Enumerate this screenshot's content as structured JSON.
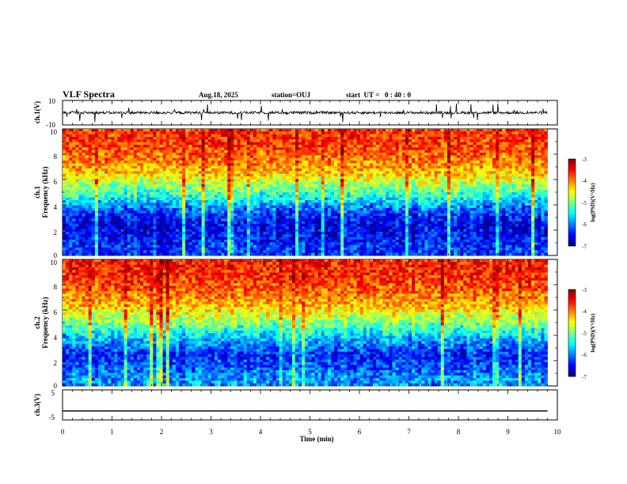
{
  "header": {
    "title": "VLF Spectra",
    "date": "Aug.18, 2025",
    "station": "station=OUJ",
    "start_ut": "start  UT =   0 : 40 : 0"
  },
  "panels": {
    "ch1_wave": {
      "ylabel": "ch.1(V)",
      "yticks": [
        "10",
        "-10"
      ]
    },
    "ch1_spec": {
      "ylabel_line1": "ch.1",
      "ylabel_line2": "Frequency (kHz)",
      "yticks": [
        "10",
        "8",
        "6",
        "4",
        "2",
        "0"
      ]
    },
    "ch2_spec": {
      "ylabel_line1": "ch.2",
      "ylabel_line2": "Frequency (kHz)",
      "yticks": [
        "10",
        "8",
        "6",
        "4",
        "2",
        "0"
      ]
    },
    "ch3_wave": {
      "ylabel": "ch.3(V)",
      "yticks": [
        "5",
        "-5"
      ]
    }
  },
  "colorbar": {
    "label": "log(PSD)(V²/Hz)",
    "ticks": [
      "-3",
      "-4",
      "-5",
      "-6",
      "-7"
    ]
  },
  "xaxis": {
    "label": "Time (min)",
    "ticks": [
      "0",
      "1",
      "2",
      "3",
      "4",
      "5",
      "6",
      "7",
      "8",
      "9",
      "10"
    ]
  },
  "chart_data": {
    "type": "heatmap",
    "title": "VLF Spectra",
    "x_axis": {
      "label": "Time (min)",
      "range": [
        0,
        10
      ],
      "data_extent": [
        0,
        9.8
      ]
    },
    "channels": [
      {
        "name": "ch.1",
        "waveform_ylim": [
          -10,
          10
        ],
        "spectrogram": {
          "ylabel": "Frequency (kHz)",
          "ylim": [
            0,
            10
          ],
          "colorscale": "jet",
          "color_range": [
            -7,
            -3
          ],
          "approx_mean_log_psd_by_freq_khz": [
            {
              "freq": 0.5,
              "value": -6.3
            },
            {
              "freq": 1.5,
              "value": -6.5
            },
            {
              "freq": 2.5,
              "value": -6.6
            },
            {
              "freq": 3.5,
              "value": -6.2
            },
            {
              "freq": 4.5,
              "value": -5.5
            },
            {
              "freq": 5.5,
              "value": -4.9
            },
            {
              "freq": 6.5,
              "value": -4.3
            },
            {
              "freq": 7.5,
              "value": -4.0
            },
            {
              "freq": 8.5,
              "value": -3.8
            },
            {
              "freq": 9.5,
              "value": -3.7
            }
          ]
        }
      },
      {
        "name": "ch.2",
        "spectrogram": {
          "ylabel": "Frequency (kHz)",
          "ylim": [
            0,
            10
          ],
          "colorscale": "jet",
          "color_range": [
            -7,
            -3
          ],
          "approx_mean_log_psd_by_freq_khz": [
            {
              "freq": 0.5,
              "value": -5.9
            },
            {
              "freq": 1.5,
              "value": -6.2
            },
            {
              "freq": 2.5,
              "value": -6.4
            },
            {
              "freq": 3.5,
              "value": -5.9
            },
            {
              "freq": 4.5,
              "value": -5.3
            },
            {
              "freq": 5.5,
              "value": -4.7
            },
            {
              "freq": 6.5,
              "value": -4.2
            },
            {
              "freq": 7.5,
              "value": -3.9
            },
            {
              "freq": 8.5,
              "value": -3.7
            },
            {
              "freq": 9.5,
              "value": -3.6
            }
          ]
        }
      },
      {
        "name": "ch.3",
        "waveform_ylim": [
          -5,
          5
        ],
        "waveform_constant_value": -2
      }
    ]
  }
}
